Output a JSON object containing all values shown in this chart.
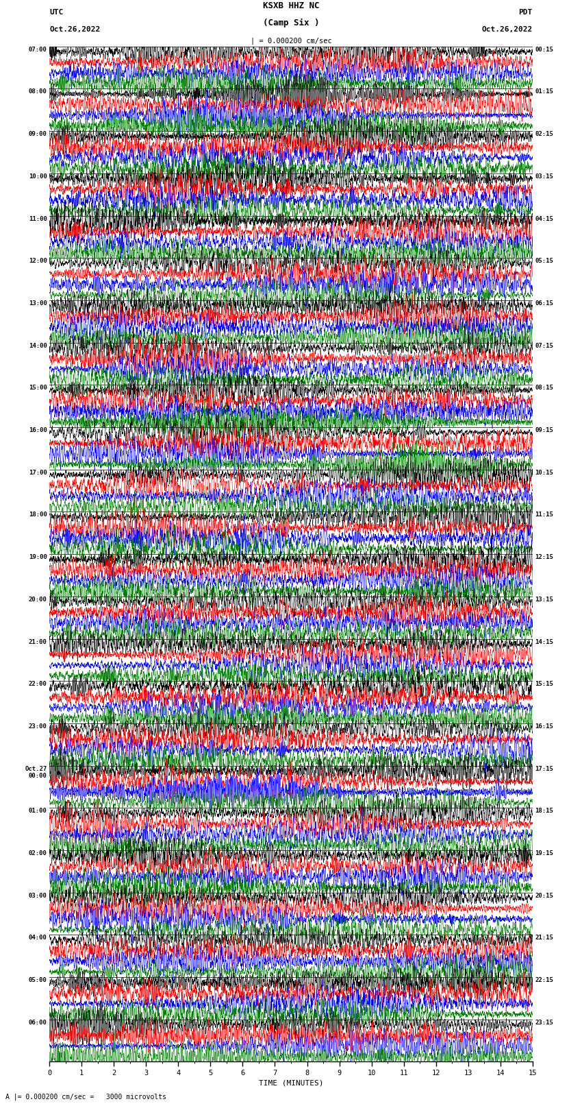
{
  "title_line1": "KSXB HHZ NC",
  "title_line2": "(Camp Six )",
  "scale_label": "| = 0.000200 cm/sec",
  "bottom_text": "A |= 0.000200 cm/sec =   3000 microvolts",
  "left_label_line1": "UTC",
  "left_label_line2": "Oct.26,2022",
  "right_label_line1": "PDT",
  "right_label_line2": "Oct.26,2022",
  "xlabel": "TIME (MINUTES)",
  "left_times": [
    "07:00",
    "08:00",
    "09:00",
    "10:00",
    "11:00",
    "12:00",
    "13:00",
    "14:00",
    "15:00",
    "16:00",
    "17:00",
    "18:00",
    "19:00",
    "20:00",
    "21:00",
    "22:00",
    "23:00",
    "Oct.27\n00:00",
    "01:00",
    "02:00",
    "03:00",
    "04:00",
    "05:00",
    "06:00"
  ],
  "right_times": [
    "00:15",
    "01:15",
    "02:15",
    "03:15",
    "04:15",
    "05:15",
    "06:15",
    "07:15",
    "08:15",
    "09:15",
    "10:15",
    "11:15",
    "12:15",
    "13:15",
    "14:15",
    "15:15",
    "16:15",
    "17:15",
    "18:15",
    "19:15",
    "20:15",
    "21:15",
    "22:15",
    "23:15"
  ],
  "num_rows": 24,
  "traces_per_row": 4,
  "trace_colors": [
    "black",
    "red",
    "blue",
    "green"
  ],
  "bg_color": "white",
  "xmin": 0,
  "xmax": 15,
  "seed": 42
}
